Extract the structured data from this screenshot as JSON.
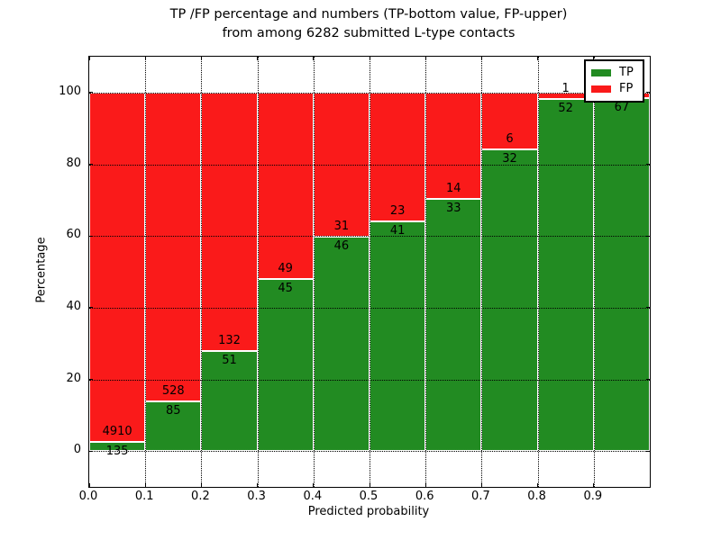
{
  "chart_data": {
    "type": "bar",
    "stacked": true,
    "title_lines": [
      "TP /FP percentage and numbers (TP-bottom value, FP-upper)",
      "from among 6282 submitted L-type contacts"
    ],
    "xlabel": "Predicted probability",
    "ylabel": "Percentage",
    "xlim": [
      0.0,
      1.0
    ],
    "ylim": [
      -10,
      110
    ],
    "xticks": [
      "0.0",
      "0.1",
      "0.2",
      "0.3",
      "0.4",
      "0.5",
      "0.6",
      "0.7",
      "0.8",
      "0.9"
    ],
    "yticks": [
      "0",
      "20",
      "40",
      "60",
      "80",
      "100"
    ],
    "grid": {
      "style": "dotted",
      "color": "#000000"
    },
    "colors": {
      "tp": "#228B22",
      "fp": "#FA1A1A",
      "bar_edge": "#FFFFFF"
    },
    "legend": {
      "position": "upper right",
      "entries": [
        {
          "label": "TP",
          "color": "#228B22"
        },
        {
          "label": "FP",
          "color": "#FA1A1A"
        }
      ]
    },
    "bars": [
      {
        "range": [
          0.0,
          0.1
        ],
        "tp": 135,
        "fp": 4910
      },
      {
        "range": [
          0.1,
          0.2
        ],
        "tp": 85,
        "fp": 528
      },
      {
        "range": [
          0.2,
          0.3
        ],
        "tp": 51,
        "fp": 132
      },
      {
        "range": [
          0.3,
          0.4
        ],
        "tp": 45,
        "fp": 49
      },
      {
        "range": [
          0.4,
          0.5
        ],
        "tp": 46,
        "fp": 31
      },
      {
        "range": [
          0.5,
          0.6
        ],
        "tp": 41,
        "fp": 23
      },
      {
        "range": [
          0.6,
          0.7
        ],
        "tp": 33,
        "fp": 14
      },
      {
        "range": [
          0.7,
          0.8
        ],
        "tp": 32,
        "fp": 6
      },
      {
        "range": [
          0.8,
          0.9
        ],
        "tp": 52,
        "fp": 1
      },
      {
        "range": [
          0.9,
          1.0
        ],
        "tp": 67,
        "fp": 1
      }
    ],
    "bar_value_note": "TP count printed below segment boundary, FP count printed above it"
  }
}
